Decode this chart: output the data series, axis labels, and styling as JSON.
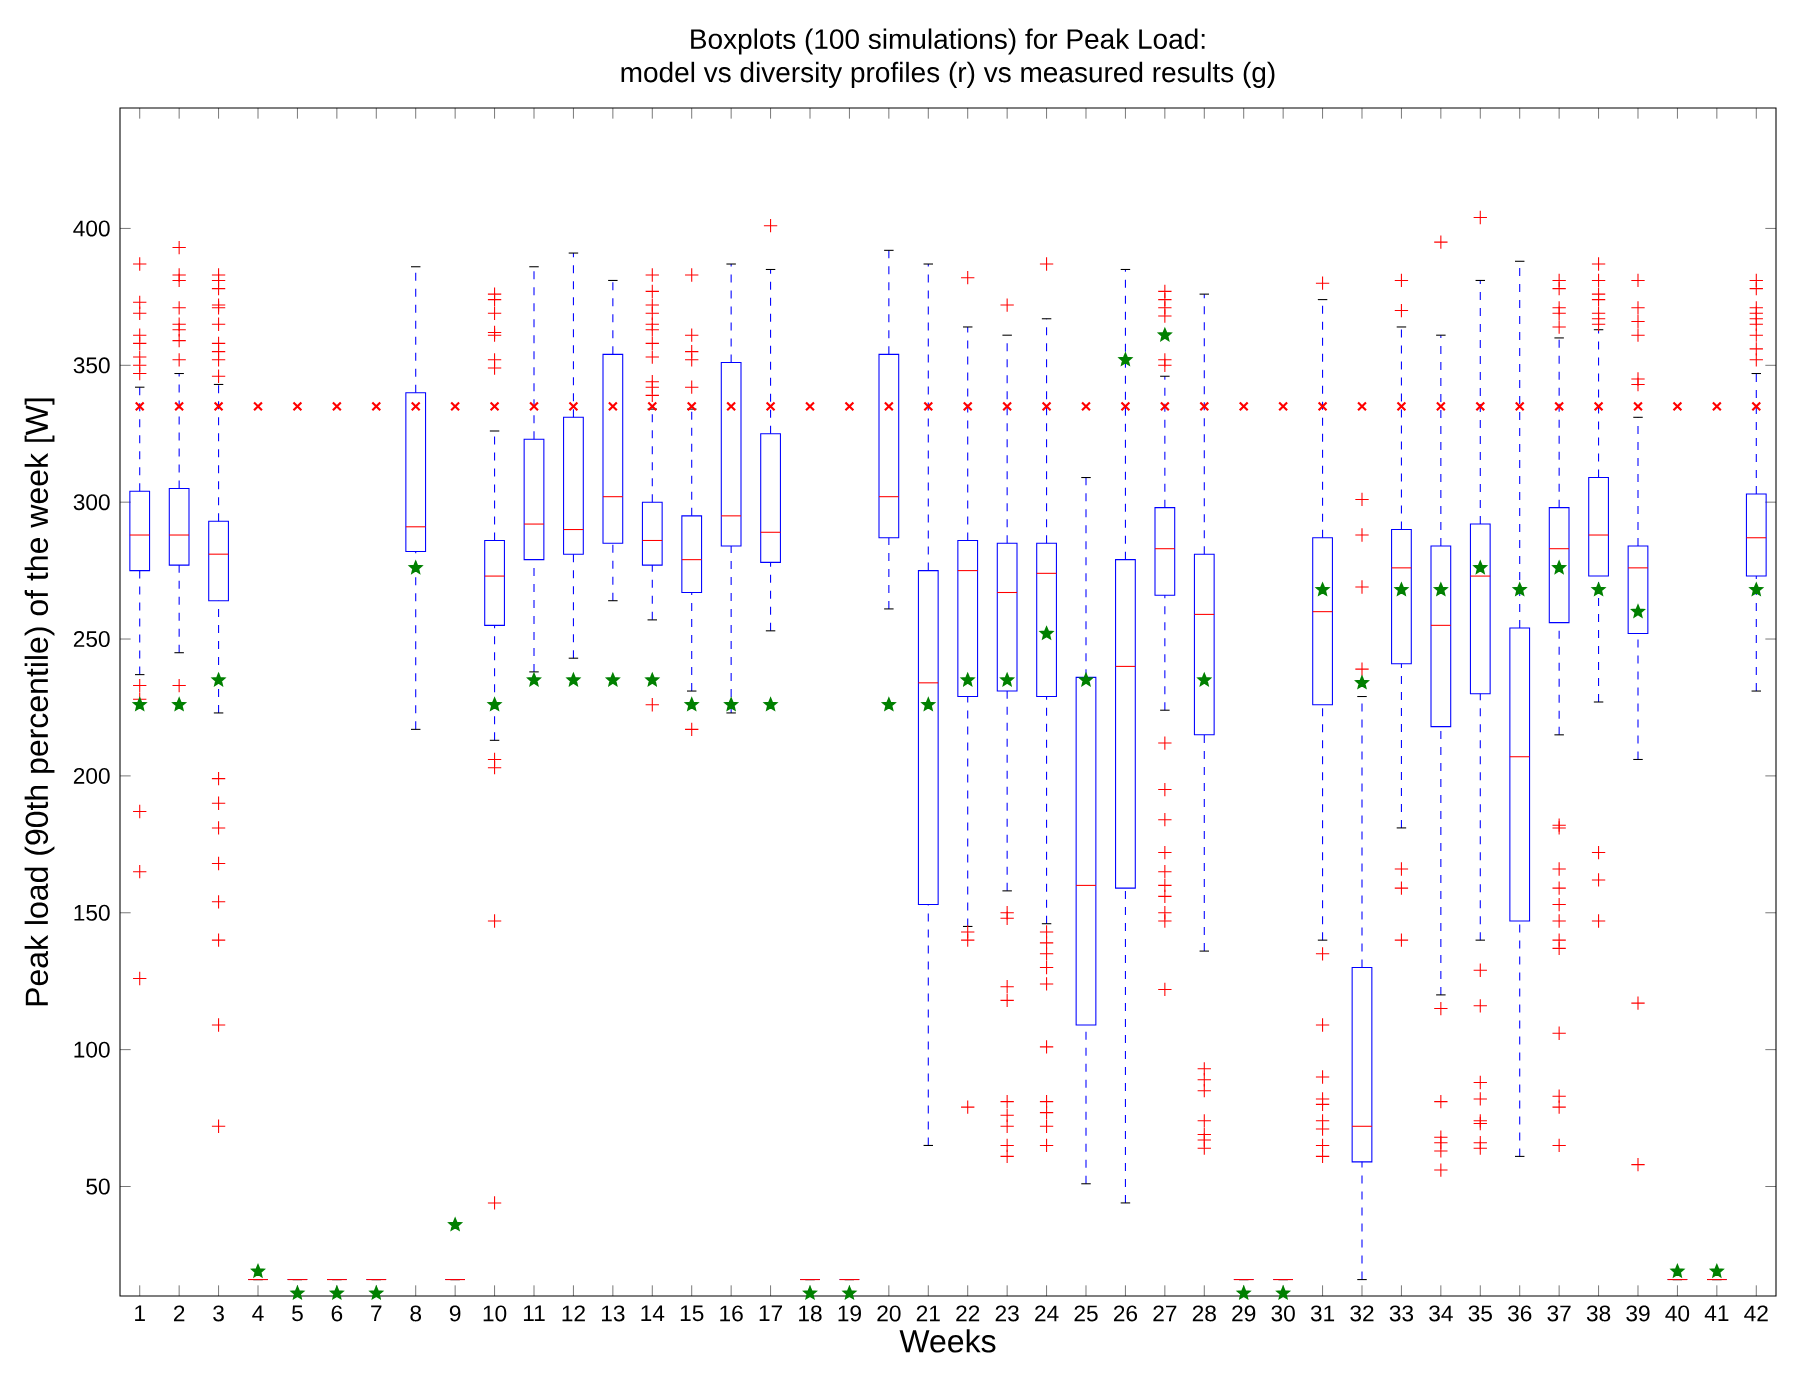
{
  "chart_data": {
    "type": "box",
    "title": "Boxplots (100 simulations) for Peak Load:",
    "subtitle": "model vs diversity profiles (r) vs measured results (g)",
    "xlabel": "Weeks",
    "ylabel": "Peak load (90th percentile) of the week [W]",
    "categories": [
      "1",
      "2",
      "3",
      "4",
      "5",
      "6",
      "7",
      "8",
      "9",
      "10",
      "11",
      "12",
      "13",
      "14",
      "15",
      "16",
      "17",
      "18",
      "19",
      "20",
      "21",
      "22",
      "23",
      "24",
      "25",
      "26",
      "27",
      "28",
      "29",
      "30",
      "31",
      "32",
      "33",
      "34",
      "35",
      "36",
      "37",
      "38",
      "39",
      "40",
      "41",
      "42"
    ],
    "ylim": [
      10,
      444
    ],
    "yticks": [
      50,
      100,
      150,
      200,
      250,
      300,
      350,
      400
    ],
    "series": [
      {
        "color": "#0000ff",
        "boxes": [
          {
            "low": 237,
            "q1": 275,
            "median": 288,
            "q3": 304,
            "high": 342,
            "outliers": [
              387,
              373,
              369,
              361,
              358,
              353,
              350,
              347,
              233,
              228,
              165,
              187,
              126
            ]
          },
          {
            "low": 245,
            "q1": 277,
            "median": 288,
            "q3": 305,
            "high": 347,
            "outliers": [
              393,
              383,
              381,
              371,
              365,
              363,
              359,
              352,
              233
            ]
          },
          {
            "low": 223,
            "q1": 264,
            "median": 281,
            "q3": 293,
            "high": 343,
            "outliers": [
              383,
              381,
              378,
              372,
              371,
              365,
              358,
              355,
              352,
              346,
              199,
              190,
              181,
              168,
              154,
              140,
              109,
              72
            ]
          },
          {
            "low": 16,
            "q1": 16,
            "median": 16,
            "q3": 16,
            "high": 16
          },
          {
            "low": 16,
            "q1": 16,
            "median": 16,
            "q3": 16,
            "high": 16
          },
          {
            "low": 16,
            "q1": 16,
            "median": 16,
            "q3": 16,
            "high": 16
          },
          {
            "low": 16,
            "q1": 16,
            "median": 16,
            "q3": 16,
            "high": 16
          },
          {
            "low": 217,
            "q1": 282,
            "median": 291,
            "q3": 340,
            "high": 386
          },
          {
            "low": 16,
            "q1": 16,
            "median": 16,
            "q3": 16,
            "high": 16
          },
          {
            "low": 213,
            "q1": 255,
            "median": 273,
            "q3": 286,
            "high": 326,
            "outliers": [
              376,
              374,
              369,
              362,
              361,
              352,
              349,
              206,
              203,
              147,
              44
            ]
          },
          {
            "low": 238,
            "q1": 279,
            "median": 292,
            "q3": 323,
            "high": 386
          },
          {
            "low": 243,
            "q1": 281,
            "median": 290,
            "q3": 331,
            "high": 391
          },
          {
            "low": 264,
            "q1": 285,
            "median": 302,
            "q3": 354,
            "high": 381
          },
          {
            "low": 257,
            "q1": 277,
            "median": 286,
            "q3": 300,
            "high": 334,
            "outliers": [
              383,
              377,
              372,
              369,
              365,
              363,
              358,
              353,
              344,
              342,
              339,
              226
            ]
          },
          {
            "low": 231,
            "q1": 267,
            "median": 279,
            "q3": 295,
            "high": 334,
            "outliers": [
              383,
              361,
              355,
              352,
              342,
              217
            ]
          },
          {
            "low": 223,
            "q1": 284,
            "median": 295,
            "q3": 351,
            "high": 387
          },
          {
            "low": 253,
            "q1": 278,
            "median": 289,
            "q3": 325,
            "high": 385,
            "outliers": [
              401
            ]
          },
          {
            "low": 16,
            "q1": 16,
            "median": 16,
            "q3": 16,
            "high": 16
          },
          {
            "low": 16,
            "q1": 16,
            "median": 16,
            "q3": 16,
            "high": 16
          },
          {
            "low": 261,
            "q1": 287,
            "median": 302,
            "q3": 354,
            "high": 392
          },
          {
            "low": 65,
            "q1": 153,
            "median": 234,
            "q3": 275,
            "high": 387
          },
          {
            "low": 145,
            "q1": 229,
            "median": 275,
            "q3": 286,
            "high": 364,
            "outliers": [
              382,
              143,
              140,
              79
            ]
          },
          {
            "low": 158,
            "q1": 231,
            "median": 267,
            "q3": 285,
            "high": 361,
            "outliers": [
              372,
              150,
              148,
              123,
              118,
              81,
              76,
              72,
              65,
              61
            ]
          },
          {
            "low": 146,
            "q1": 229,
            "median": 274,
            "q3": 285,
            "high": 367,
            "outliers": [
              387,
              143,
              139,
              135,
              130,
              124,
              101,
              81,
              77,
              72,
              65
            ]
          },
          {
            "low": 51,
            "q1": 109,
            "median": 160,
            "q3": 236,
            "high": 309
          },
          {
            "low": 44,
            "q1": 159,
            "median": 240,
            "q3": 279,
            "high": 385
          },
          {
            "low": 224,
            "q1": 266,
            "median": 283,
            "q3": 298,
            "high": 346,
            "outliers": [
              377,
              374,
              371,
              368,
              352,
              350,
              212,
              195,
              184,
              172,
              165,
              160,
              156,
              150,
              147,
              122
            ]
          },
          {
            "low": 136,
            "q1": 215,
            "median": 259,
            "q3": 281,
            "high": 376,
            "outliers": [
              93,
              89,
              85,
              74,
              69,
              67,
              64
            ]
          },
          {
            "low": 16,
            "q1": 16,
            "median": 16,
            "q3": 16,
            "high": 16
          },
          {
            "low": 16,
            "q1": 16,
            "median": 16,
            "q3": 16,
            "high": 16
          },
          {
            "low": 140,
            "q1": 226,
            "median": 260,
            "q3": 287,
            "high": 374,
            "outliers": [
              380,
              135,
              109,
              90,
              82,
              80,
              74,
              71,
              65,
              61
            ]
          },
          {
            "low": 16,
            "q1": 59,
            "median": 72,
            "q3": 130,
            "high": 229,
            "outliers": [
              301,
              288,
              269,
              239
            ]
          },
          {
            "low": 181,
            "q1": 241,
            "median": 276,
            "q3": 290,
            "high": 364,
            "outliers": [
              381,
              370,
              166,
              159,
              140
            ]
          },
          {
            "low": 120,
            "q1": 218,
            "median": 255,
            "q3": 284,
            "high": 361,
            "outliers": [
              395,
              115,
              81,
              68,
              66,
              63,
              56
            ]
          },
          {
            "low": 140,
            "q1": 230,
            "median": 273,
            "q3": 292,
            "high": 381,
            "outliers": [
              404,
              129,
              116,
              88,
              82,
              74,
              73,
              66,
              64
            ]
          },
          {
            "low": 61,
            "q1": 147,
            "median": 207,
            "q3": 254,
            "high": 388
          },
          {
            "low": 215,
            "q1": 256,
            "median": 283,
            "q3": 298,
            "high": 360,
            "outliers": [
              381,
              378,
              371,
              369,
              364,
              182,
              181,
              166,
              159,
              153,
              147,
              140,
              137,
              106,
              83,
              79,
              65
            ]
          },
          {
            "low": 227,
            "q1": 273,
            "median": 288,
            "q3": 309,
            "high": 363,
            "outliers": [
              387,
              381,
              376,
              374,
              369,
              367,
              365,
              172,
              162,
              147
            ]
          },
          {
            "low": 206,
            "q1": 252,
            "median": 276,
            "q3": 284,
            "high": 331,
            "outliers": [
              381,
              371,
              366,
              361,
              345,
              343,
              117,
              58
            ]
          },
          {
            "low": 16,
            "q1": 16,
            "median": 16,
            "q3": 16,
            "high": 16
          },
          {
            "low": 16,
            "q1": 16,
            "median": 16,
            "q3": 16,
            "high": 16
          },
          {
            "low": 231,
            "q1": 273,
            "median": 287,
            "q3": 303,
            "high": 347,
            "outliers": [
              381,
              378,
              371,
              369,
              367,
              365,
              361,
              356,
              352
            ]
          }
        ]
      },
      {
        "type": "scatter",
        "color": "#ff0000",
        "marker": "cross",
        "x": [
          "1",
          "2",
          "3",
          "4",
          "5",
          "6",
          "7",
          "8",
          "9",
          "10",
          "11",
          "12",
          "13",
          "14",
          "15",
          "16",
          "17",
          "18",
          "19",
          "20",
          "21",
          "22",
          "23",
          "24",
          "25",
          "26",
          "27",
          "28",
          "29",
          "30",
          "31",
          "32",
          "33",
          "34",
          "35",
          "36",
          "37",
          "38",
          "39",
          "40",
          "41",
          "42"
        ],
        "values": [
          335,
          335,
          335,
          335,
          335,
          335,
          335,
          335,
          335,
          335,
          335,
          335,
          335,
          335,
          335,
          335,
          335,
          335,
          335,
          335,
          335,
          335,
          335,
          335,
          335,
          335,
          335,
          335,
          335,
          335,
          335,
          335,
          335,
          335,
          335,
          335,
          335,
          335,
          335,
          335,
          335,
          335
        ]
      },
      {
        "type": "scatter",
        "color": "#008000",
        "marker": "star",
        "x": [
          "1",
          "2",
          "3",
          "4",
          "5",
          "6",
          "7",
          "8",
          "9",
          "10",
          "11",
          "12",
          "13",
          "14",
          "15",
          "16",
          "17",
          "18",
          "19",
          "20",
          "21",
          "22",
          "23",
          "24",
          "25",
          "26",
          "27",
          "28",
          "29",
          "30",
          "31",
          "32",
          "33",
          "34",
          "35",
          "36",
          "37",
          "38",
          "39",
          "40",
          "41",
          "42"
        ],
        "values": [
          226,
          226,
          235,
          19,
          11,
          11,
          11,
          276,
          36,
          226,
          235,
          235,
          235,
          235,
          226,
          226,
          226,
          11,
          11,
          226,
          226,
          235,
          235,
          252,
          235,
          352,
          361,
          235,
          11,
          11,
          268,
          234,
          268,
          268,
          276,
          268,
          276,
          268,
          260,
          19,
          19,
          268
        ]
      }
    ]
  }
}
